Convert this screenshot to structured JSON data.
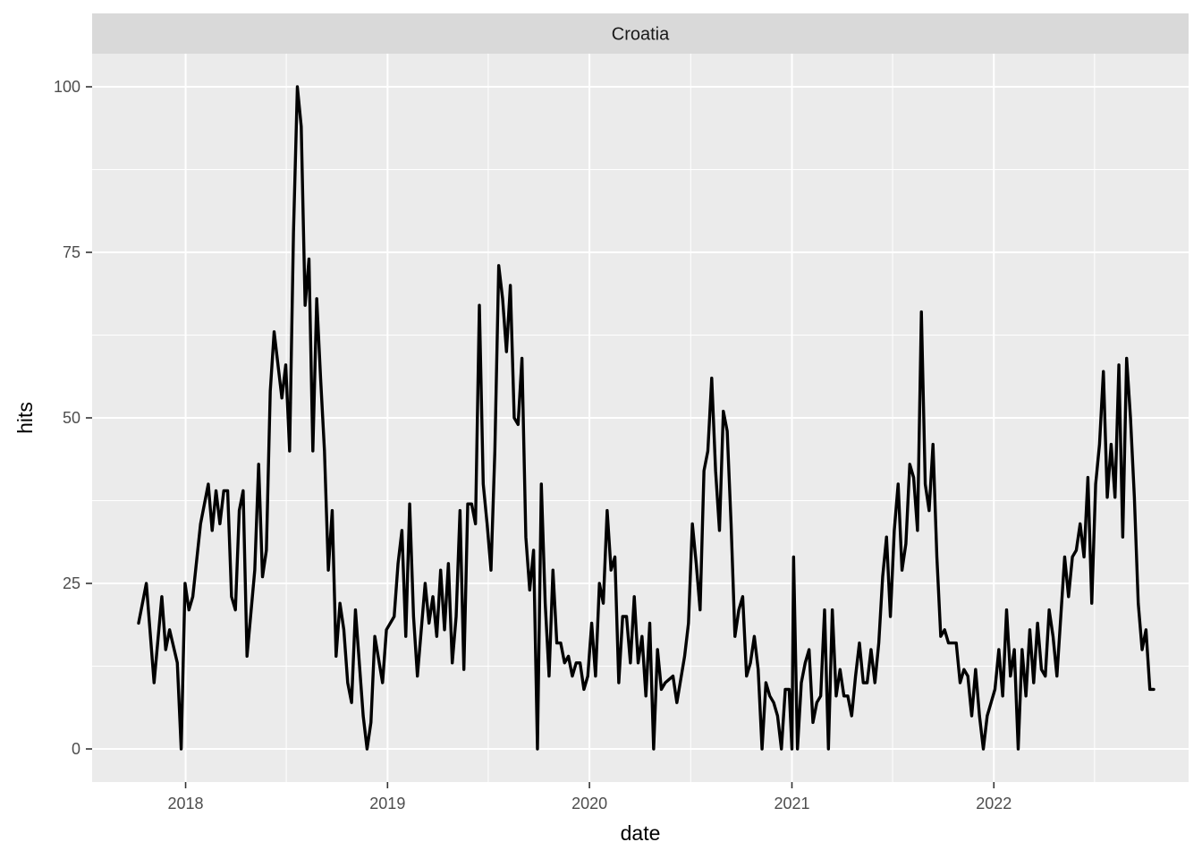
{
  "chart_data": {
    "type": "line",
    "facet_label": "Croatia",
    "xlabel": "date",
    "ylabel": "hits",
    "x_ticks": [
      "2018",
      "2019",
      "2020",
      "2021",
      "2022"
    ],
    "y_ticks": [
      0,
      25,
      50,
      75,
      100
    ],
    "xlim": [
      "2017-07-16",
      "2022-12-19"
    ],
    "ylim": [
      -5,
      105
    ],
    "grid": true,
    "legend": "none",
    "colors": {
      "panel": "#ebebeb",
      "strip": "#d9d9d9",
      "gridline": "#ffffff",
      "line": "#000000"
    },
    "series": [
      {
        "points": [
          [
            "2017-10-08",
            19
          ],
          [
            "2017-10-22",
            25
          ],
          [
            "2017-11-05",
            10
          ],
          [
            "2017-11-19",
            23
          ],
          [
            "2017-11-26",
            15
          ],
          [
            "2017-12-03",
            18
          ],
          [
            "2017-12-17",
            13
          ],
          [
            "2017-12-24",
            0
          ],
          [
            "2017-12-31",
            25
          ],
          [
            "2018-01-07",
            21
          ],
          [
            "2018-01-14",
            23
          ],
          [
            "2018-01-28",
            34
          ],
          [
            "2018-02-11",
            40
          ],
          [
            "2018-02-18",
            33
          ],
          [
            "2018-02-25",
            39
          ],
          [
            "2018-03-04",
            34
          ],
          [
            "2018-03-11",
            39
          ],
          [
            "2018-03-18",
            39
          ],
          [
            "2018-03-25",
            23
          ],
          [
            "2018-04-01",
            21
          ],
          [
            "2018-04-08",
            36
          ],
          [
            "2018-04-15",
            39
          ],
          [
            "2018-04-22",
            14
          ],
          [
            "2018-05-06",
            27
          ],
          [
            "2018-05-13",
            43
          ],
          [
            "2018-05-20",
            26
          ],
          [
            "2018-05-27",
            30
          ],
          [
            "2018-06-03",
            54
          ],
          [
            "2018-06-10",
            63
          ],
          [
            "2018-06-24",
            53
          ],
          [
            "2018-07-01",
            58
          ],
          [
            "2018-07-08",
            45
          ],
          [
            "2018-07-15",
            78
          ],
          [
            "2018-07-22",
            100
          ],
          [
            "2018-07-29",
            94
          ],
          [
            "2018-08-05",
            67
          ],
          [
            "2018-08-12",
            74
          ],
          [
            "2018-08-19",
            45
          ],
          [
            "2018-08-26",
            68
          ],
          [
            "2018-09-02",
            56
          ],
          [
            "2018-09-09",
            45
          ],
          [
            "2018-09-16",
            27
          ],
          [
            "2018-09-23",
            36
          ],
          [
            "2018-09-30",
            14
          ],
          [
            "2018-10-07",
            22
          ],
          [
            "2018-10-14",
            18
          ],
          [
            "2018-10-21",
            10
          ],
          [
            "2018-10-28",
            7
          ],
          [
            "2018-11-04",
            21
          ],
          [
            "2018-11-18",
            5
          ],
          [
            "2018-11-25",
            0
          ],
          [
            "2018-12-02",
            4
          ],
          [
            "2018-12-09",
            17
          ],
          [
            "2018-12-23",
            10
          ],
          [
            "2018-12-30",
            18
          ],
          [
            "2019-01-13",
            20
          ],
          [
            "2019-01-20",
            28
          ],
          [
            "2019-01-27",
            33
          ],
          [
            "2019-02-03",
            17
          ],
          [
            "2019-02-10",
            37
          ],
          [
            "2019-02-17",
            20
          ],
          [
            "2019-02-24",
            11
          ],
          [
            "2019-03-10",
            25
          ],
          [
            "2019-03-17",
            19
          ],
          [
            "2019-03-24",
            23
          ],
          [
            "2019-03-31",
            17
          ],
          [
            "2019-04-07",
            27
          ],
          [
            "2019-04-14",
            18
          ],
          [
            "2019-04-21",
            28
          ],
          [
            "2019-04-28",
            13
          ],
          [
            "2019-05-05",
            20
          ],
          [
            "2019-05-12",
            36
          ],
          [
            "2019-05-19",
            12
          ],
          [
            "2019-05-26",
            37
          ],
          [
            "2019-06-02",
            37
          ],
          [
            "2019-06-09",
            34
          ],
          [
            "2019-06-16",
            67
          ],
          [
            "2019-06-23",
            40
          ],
          [
            "2019-06-30",
            34
          ],
          [
            "2019-07-07",
            27
          ],
          [
            "2019-07-14",
            45
          ],
          [
            "2019-07-21",
            73
          ],
          [
            "2019-07-28",
            68
          ],
          [
            "2019-08-04",
            60
          ],
          [
            "2019-08-11",
            70
          ],
          [
            "2019-08-18",
            50
          ],
          [
            "2019-08-25",
            49
          ],
          [
            "2019-09-01",
            59
          ],
          [
            "2019-09-08",
            32
          ],
          [
            "2019-09-15",
            24
          ],
          [
            "2019-09-22",
            30
          ],
          [
            "2019-09-29",
            0
          ],
          [
            "2019-10-06",
            40
          ],
          [
            "2019-10-13",
            22
          ],
          [
            "2019-10-20",
            11
          ],
          [
            "2019-10-27",
            27
          ],
          [
            "2019-11-03",
            16
          ],
          [
            "2019-11-10",
            16
          ],
          [
            "2019-11-17",
            13
          ],
          [
            "2019-11-24",
            14
          ],
          [
            "2019-12-01",
            11
          ],
          [
            "2019-12-08",
            13
          ],
          [
            "2019-12-15",
            13
          ],
          [
            "2019-12-22",
            9
          ],
          [
            "2019-12-29",
            11
          ],
          [
            "2020-01-05",
            19
          ],
          [
            "2020-01-12",
            11
          ],
          [
            "2020-01-19",
            25
          ],
          [
            "2020-01-26",
            22
          ],
          [
            "2020-02-02",
            36
          ],
          [
            "2020-02-09",
            27
          ],
          [
            "2020-02-16",
            29
          ],
          [
            "2020-02-23",
            10
          ],
          [
            "2020-03-01",
            20
          ],
          [
            "2020-03-08",
            20
          ],
          [
            "2020-03-15",
            13
          ],
          [
            "2020-03-22",
            23
          ],
          [
            "2020-03-29",
            13
          ],
          [
            "2020-04-05",
            17
          ],
          [
            "2020-04-12",
            8
          ],
          [
            "2020-04-19",
            19
          ],
          [
            "2020-04-26",
            0
          ],
          [
            "2020-05-03",
            15
          ],
          [
            "2020-05-10",
            9
          ],
          [
            "2020-05-17",
            10
          ],
          [
            "2020-05-31",
            11
          ],
          [
            "2020-06-07",
            7
          ],
          [
            "2020-06-21",
            14
          ],
          [
            "2020-06-28",
            19
          ],
          [
            "2020-07-05",
            34
          ],
          [
            "2020-07-12",
            28
          ],
          [
            "2020-07-19",
            21
          ],
          [
            "2020-07-26",
            42
          ],
          [
            "2020-08-02",
            45
          ],
          [
            "2020-08-09",
            56
          ],
          [
            "2020-08-16",
            42
          ],
          [
            "2020-08-23",
            33
          ],
          [
            "2020-08-30",
            51
          ],
          [
            "2020-09-06",
            48
          ],
          [
            "2020-09-13",
            34
          ],
          [
            "2020-09-20",
            17
          ],
          [
            "2020-09-27",
            21
          ],
          [
            "2020-10-04",
            23
          ],
          [
            "2020-10-11",
            11
          ],
          [
            "2020-10-18",
            13
          ],
          [
            "2020-10-25",
            17
          ],
          [
            "2020-11-01",
            12
          ],
          [
            "2020-11-08",
            0
          ],
          [
            "2020-11-15",
            10
          ],
          [
            "2020-11-22",
            8
          ],
          [
            "2020-11-29",
            7
          ],
          [
            "2020-12-06",
            5
          ],
          [
            "2020-12-13",
            0
          ],
          [
            "2020-12-20",
            9
          ],
          [
            "2020-12-27",
            9
          ],
          [
            "2021-01-01",
            0
          ],
          [
            "2021-01-04",
            29
          ],
          [
            "2021-01-11",
            0
          ],
          [
            "2021-01-18",
            10
          ],
          [
            "2021-01-25",
            13
          ],
          [
            "2021-02-01",
            15
          ],
          [
            "2021-02-08",
            4
          ],
          [
            "2021-02-15",
            7
          ],
          [
            "2021-02-22",
            8
          ],
          [
            "2021-03-01",
            21
          ],
          [
            "2021-03-08",
            0
          ],
          [
            "2021-03-15",
            21
          ],
          [
            "2021-03-22",
            8
          ],
          [
            "2021-03-29",
            12
          ],
          [
            "2021-04-05",
            8
          ],
          [
            "2021-04-12",
            8
          ],
          [
            "2021-04-19",
            5
          ],
          [
            "2021-04-26",
            11
          ],
          [
            "2021-05-03",
            16
          ],
          [
            "2021-05-10",
            10
          ],
          [
            "2021-05-17",
            10
          ],
          [
            "2021-05-24",
            15
          ],
          [
            "2021-05-31",
            10
          ],
          [
            "2021-06-07",
            16
          ],
          [
            "2021-06-14",
            26
          ],
          [
            "2021-06-21",
            32
          ],
          [
            "2021-06-28",
            20
          ],
          [
            "2021-07-05",
            33
          ],
          [
            "2021-07-12",
            40
          ],
          [
            "2021-07-19",
            27
          ],
          [
            "2021-07-26",
            31
          ],
          [
            "2021-08-02",
            43
          ],
          [
            "2021-08-09",
            41
          ],
          [
            "2021-08-16",
            33
          ],
          [
            "2021-08-23",
            66
          ],
          [
            "2021-08-30",
            40
          ],
          [
            "2021-09-06",
            36
          ],
          [
            "2021-09-13",
            46
          ],
          [
            "2021-09-20",
            29
          ],
          [
            "2021-09-27",
            17
          ],
          [
            "2021-10-04",
            18
          ],
          [
            "2021-10-11",
            16
          ],
          [
            "2021-10-18",
            16
          ],
          [
            "2021-10-25",
            16
          ],
          [
            "2021-11-01",
            10
          ],
          [
            "2021-11-08",
            12
          ],
          [
            "2021-11-15",
            11
          ],
          [
            "2021-11-22",
            5
          ],
          [
            "2021-11-29",
            12
          ],
          [
            "2021-12-06",
            5
          ],
          [
            "2021-12-13",
            0
          ],
          [
            "2021-12-20",
            5
          ],
          [
            "2021-12-27",
            7
          ],
          [
            "2022-01-03",
            9
          ],
          [
            "2022-01-10",
            15
          ],
          [
            "2022-01-17",
            8
          ],
          [
            "2022-01-24",
            21
          ],
          [
            "2022-01-31",
            11
          ],
          [
            "2022-02-07",
            15
          ],
          [
            "2022-02-14",
            0
          ],
          [
            "2022-02-21",
            15
          ],
          [
            "2022-02-28",
            8
          ],
          [
            "2022-03-07",
            18
          ],
          [
            "2022-03-14",
            10
          ],
          [
            "2022-03-21",
            19
          ],
          [
            "2022-03-28",
            12
          ],
          [
            "2022-04-04",
            11
          ],
          [
            "2022-04-11",
            21
          ],
          [
            "2022-04-18",
            17
          ],
          [
            "2022-04-25",
            11
          ],
          [
            "2022-05-02",
            20
          ],
          [
            "2022-05-09",
            29
          ],
          [
            "2022-05-16",
            23
          ],
          [
            "2022-05-23",
            29
          ],
          [
            "2022-05-30",
            30
          ],
          [
            "2022-06-06",
            34
          ],
          [
            "2022-06-13",
            29
          ],
          [
            "2022-06-20",
            41
          ],
          [
            "2022-06-27",
            22
          ],
          [
            "2022-07-04",
            40
          ],
          [
            "2022-07-11",
            46
          ],
          [
            "2022-07-18",
            57
          ],
          [
            "2022-07-25",
            38
          ],
          [
            "2022-08-01",
            46
          ],
          [
            "2022-08-08",
            38
          ],
          [
            "2022-08-15",
            58
          ],
          [
            "2022-08-22",
            32
          ],
          [
            "2022-08-29",
            59
          ],
          [
            "2022-09-05",
            50
          ],
          [
            "2022-09-12",
            38
          ],
          [
            "2022-09-19",
            22
          ],
          [
            "2022-09-26",
            15
          ],
          [
            "2022-10-03",
            18
          ],
          [
            "2022-10-10",
            9
          ],
          [
            "2022-10-17",
            9
          ]
        ]
      }
    ]
  }
}
